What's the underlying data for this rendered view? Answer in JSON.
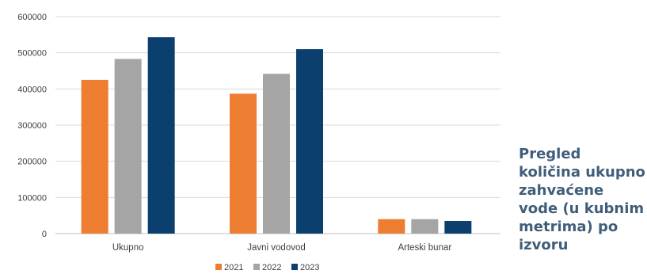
{
  "caption": "Pregled količina ukupno zahvaćene vode (u kubnim metrima) po izvoru",
  "chart_data": {
    "type": "bar",
    "categories": [
      "Ukupno",
      "Javni vodovod",
      "Arteski bunar"
    ],
    "series": [
      {
        "name": "2021",
        "color": "#ed7d31",
        "values": [
          425000,
          387000,
          40000
        ]
      },
      {
        "name": "2022",
        "color": "#a5a5a5",
        "values": [
          483000,
          442000,
          40000
        ]
      },
      {
        "name": "2023",
        "color": "#0b3f6e",
        "values": [
          543000,
          510000,
          35000
        ]
      }
    ],
    "ylim": [
      0,
      600000
    ],
    "yticks": [
      "0",
      "100000",
      "200000",
      "300000",
      "400000",
      "500000",
      "600000"
    ],
    "grid": true,
    "legend_position": "bottom"
  }
}
